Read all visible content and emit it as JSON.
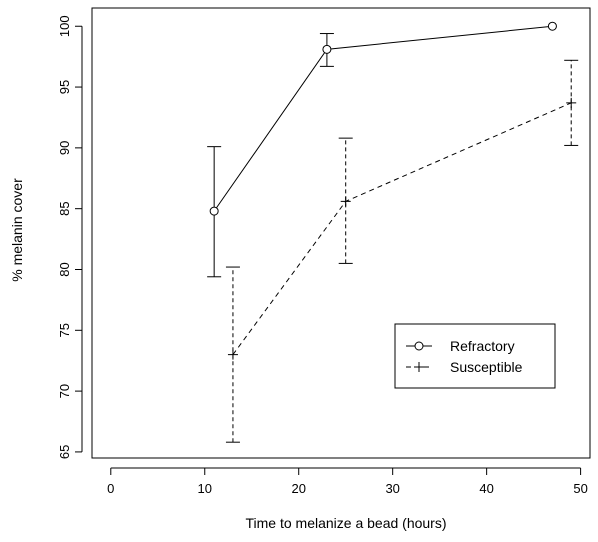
{
  "chart_data": {
    "type": "line",
    "title": "",
    "xlabel": "Time to melanize a bead (hours)",
    "ylabel": "% melanin cover",
    "xlim": [
      -2,
      51
    ],
    "ylim": [
      64.5,
      101.5
    ],
    "xticks": [
      0,
      10,
      20,
      30,
      40,
      50
    ],
    "yticks": [
      65,
      70,
      75,
      80,
      85,
      90,
      95,
      100
    ],
    "grid": false,
    "legend_position": "lower-right",
    "series": [
      {
        "name": "Refractory",
        "line_style": "solid",
        "marker": "circle",
        "color": "#000000",
        "points": [
          {
            "x": 11,
            "y": 84.8,
            "err_low": 79.4,
            "err_high": 90.1
          },
          {
            "x": 23,
            "y": 98.1,
            "err_low": 96.7,
            "err_high": 99.4
          },
          {
            "x": 47,
            "y": 100.0
          }
        ]
      },
      {
        "name": "Susceptible",
        "line_style": "dashed",
        "marker": "plus",
        "color": "#000000",
        "points": [
          {
            "x": 13,
            "y": 73.0,
            "err_low": 65.8,
            "err_high": 80.2
          },
          {
            "x": 25,
            "y": 85.6,
            "err_low": 80.5,
            "err_high": 90.8
          },
          {
            "x": 49,
            "y": 93.7,
            "err_low": 90.2,
            "err_high": 97.2
          }
        ]
      }
    ]
  }
}
